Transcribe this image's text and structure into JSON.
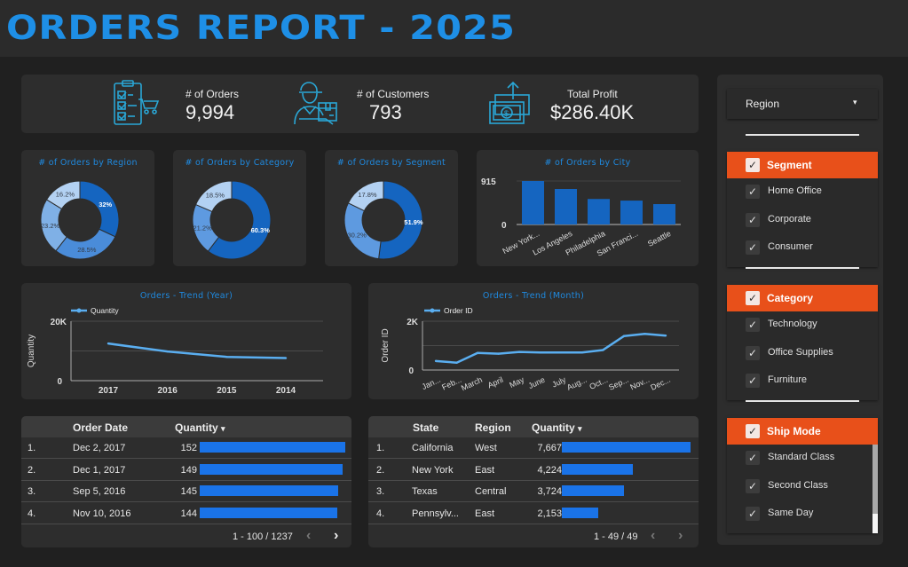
{
  "header": {
    "title": "ORDERS REPORT - 2025"
  },
  "kpis": [
    {
      "label": "# of Orders",
      "value": "9,994",
      "icon": "clipboard-cart-icon"
    },
    {
      "label": "# of Customers",
      "value": "793",
      "icon": "delivery-person-icon"
    },
    {
      "label": "Total Profit",
      "value": "$286.40K",
      "icon": "money-growth-icon"
    }
  ],
  "colors": {
    "accent": "#1f8ae0",
    "bar": "#1565c0",
    "filter_header": "#e8501a",
    "table_bar": "#1a73e8",
    "line": "#5aaef0"
  },
  "chart_data": [
    {
      "type": "pie",
      "title": "# of Orders by Region",
      "slices": [
        {
          "label": "",
          "value": 32.0,
          "text": "32%",
          "color": "#1565c0"
        },
        {
          "label": "",
          "value": 28.5,
          "text": "28.5%",
          "color": "#4a8cd9"
        },
        {
          "label": "",
          "value": 23.2,
          "text": "23.2%",
          "color": "#7fb0e6"
        },
        {
          "label": "",
          "value": 16.2,
          "text": "16.2%",
          "color": "#b3d1f2"
        }
      ]
    },
    {
      "type": "pie",
      "title": "# of Orders by Category",
      "slices": [
        {
          "label": "",
          "value": 60.3,
          "text": "60.3%",
          "color": "#1565c0"
        },
        {
          "label": "",
          "value": 21.2,
          "text": "21.2%",
          "color": "#5e9ae0"
        },
        {
          "label": "",
          "value": 18.5,
          "text": "18.5%",
          "color": "#b3d1f2"
        }
      ]
    },
    {
      "type": "pie",
      "title": "# of Orders by Segment",
      "slices": [
        {
          "label": "",
          "value": 51.9,
          "text": "51.9%",
          "color": "#1565c0"
        },
        {
          "label": "",
          "value": 30.2,
          "text": "30.2%",
          "color": "#5e9ae0"
        },
        {
          "label": "",
          "value": 17.8,
          "text": "17.8%",
          "color": "#b3d1f2"
        }
      ]
    },
    {
      "type": "bar",
      "title": "# of Orders by City",
      "categories": [
        "New York...",
        "Los Angeles",
        "Philadelphia",
        "San Franci...",
        "Seattle"
      ],
      "values": [
        915,
        747,
        537,
        503,
        429
      ],
      "yticks": [
        "0",
        "915"
      ],
      "ylim": [
        0,
        915
      ]
    },
    {
      "type": "line",
      "title": "Orders - Trend (Year)",
      "legend": "Quantity",
      "ylabel": "Quantity",
      "x": [
        "2017",
        "2016",
        "2015",
        "2014"
      ],
      "values": [
        12500,
        9800,
        8000,
        7600
      ],
      "yticks": [
        "0",
        "20K"
      ],
      "ylim": [
        0,
        20000
      ]
    },
    {
      "type": "line",
      "title": "Orders - Trend (Month)",
      "legend": "Order ID",
      "ylabel": "Order ID",
      "x": [
        "Jan...",
        "Feb...",
        "March",
        "April",
        "May",
        "June",
        "July",
        "Aug...",
        "Oct...",
        "Sep...",
        "Nov...",
        "Dec..."
      ],
      "values": [
        370,
        300,
        700,
        670,
        740,
        720,
        720,
        720,
        820,
        1390,
        1480,
        1410
      ],
      "yticks": [
        "0",
        "2K"
      ],
      "ylim": [
        0,
        2000
      ]
    }
  ],
  "table_dates": {
    "headers": [
      "Order Date",
      "Quantity"
    ],
    "sort_indicator": "▾",
    "rows": [
      {
        "n": "1.",
        "date": "Dec 2, 2017",
        "qty": "152",
        "q": 152
      },
      {
        "n": "2.",
        "date": "Dec 1, 2017",
        "qty": "149",
        "q": 149
      },
      {
        "n": "3.",
        "date": "Sep 5, 2016",
        "qty": "145",
        "q": 145
      },
      {
        "n": "4.",
        "date": "Nov 10, 2016",
        "qty": "144",
        "q": 144
      }
    ],
    "max": 152,
    "pager": "1 - 100 / 1237"
  },
  "table_states": {
    "headers": [
      "State",
      "Region",
      "Quantity"
    ],
    "sort_indicator": "▾",
    "rows": [
      {
        "n": "1.",
        "state": "California",
        "region": "West",
        "qty": "7,667",
        "q": 7667
      },
      {
        "n": "2.",
        "state": "New York",
        "region": "East",
        "qty": "4,224",
        "q": 4224
      },
      {
        "n": "3.",
        "state": "Texas",
        "region": "Central",
        "qty": "3,724",
        "q": 3724
      },
      {
        "n": "4.",
        "state": "Pennsylv...",
        "region": "East",
        "qty": "2,153",
        "q": 2153
      }
    ],
    "max": 7667,
    "pager": "1 - 49 / 49"
  },
  "filters": {
    "region_dropdown": {
      "label": "Region",
      "icon": "caret-down-icon"
    },
    "groups": [
      {
        "title": "Segment",
        "checked": true,
        "items": [
          {
            "label": "Home Office",
            "checked": true
          },
          {
            "label": "Corporate",
            "checked": true
          },
          {
            "label": "Consumer",
            "checked": true
          }
        ]
      },
      {
        "title": "Category",
        "checked": true,
        "items": [
          {
            "label": "Technology",
            "checked": true
          },
          {
            "label": "Office Supplies",
            "checked": true
          },
          {
            "label": "Furniture",
            "checked": true
          }
        ]
      },
      {
        "title": "Ship Mode",
        "checked": true,
        "items": [
          {
            "label": "Standard Class",
            "checked": true
          },
          {
            "label": "Second Class",
            "checked": true
          },
          {
            "label": "Same Day",
            "checked": true
          }
        ]
      }
    ]
  },
  "icons": {
    "check": "✓",
    "prev": "‹",
    "next": "›",
    "caret": "▾"
  }
}
